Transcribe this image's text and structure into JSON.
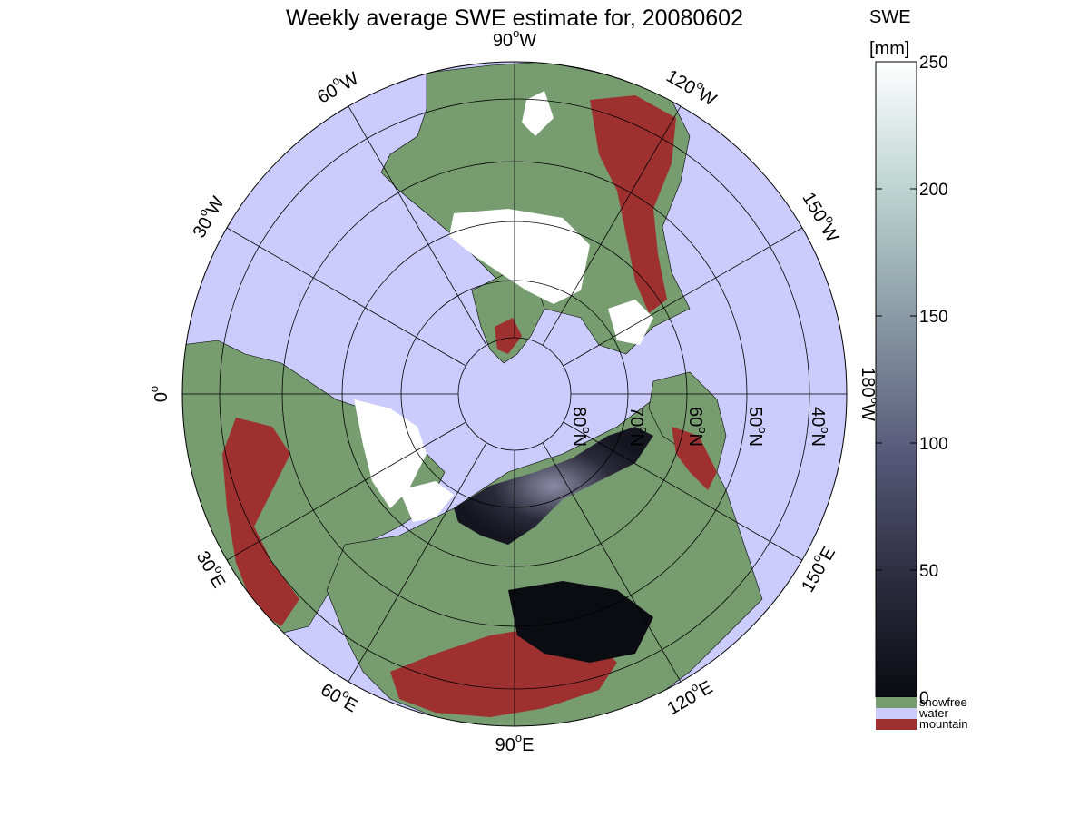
{
  "title": "Weekly average SWE estimate for, 20080602",
  "colorbar": {
    "label_line1": "SWE",
    "label_line2": "[mm]",
    "ticks": [
      "0",
      "50",
      "100",
      "150",
      "200",
      "250"
    ],
    "range": [
      0,
      250
    ],
    "gradient_stops": [
      "#0b0b12",
      "#2b2b3e",
      "#565878",
      "#8595a2",
      "#b6d0cc",
      "#ffffff"
    ],
    "categories": [
      {
        "label": "snowfree",
        "color": "#769c70"
      },
      {
        "label": "water",
        "color": "#cccbfd"
      },
      {
        "label": "mountain",
        "color": "#9e3030"
      }
    ]
  },
  "map": {
    "projection": "north polar stereographic",
    "ocean_color": "#cccbfd",
    "land_color": "#769c70",
    "mountain_color": "#9e3030",
    "snow_color": "#ffffff",
    "longitude_labels": [
      {
        "deg": "90",
        "hemi": "W"
      },
      {
        "deg": "120",
        "hemi": "W"
      },
      {
        "deg": "150",
        "hemi": "W"
      },
      {
        "deg": "180",
        "hemi": "W"
      },
      {
        "deg": "150",
        "hemi": "E"
      },
      {
        "deg": "120",
        "hemi": "E"
      },
      {
        "deg": "90",
        "hemi": "E"
      },
      {
        "deg": "60",
        "hemi": "E"
      },
      {
        "deg": "30",
        "hemi": "E"
      },
      {
        "deg": "0",
        "hemi": ""
      },
      {
        "deg": "30",
        "hemi": "W"
      },
      {
        "deg": "60",
        "hemi": "W"
      }
    ],
    "latitude_labels": [
      {
        "deg": "80",
        "hemi": "N"
      },
      {
        "deg": "70",
        "hemi": "N"
      },
      {
        "deg": "60",
        "hemi": "N"
      },
      {
        "deg": "50",
        "hemi": "N"
      },
      {
        "deg": "40",
        "hemi": "N"
      }
    ]
  }
}
